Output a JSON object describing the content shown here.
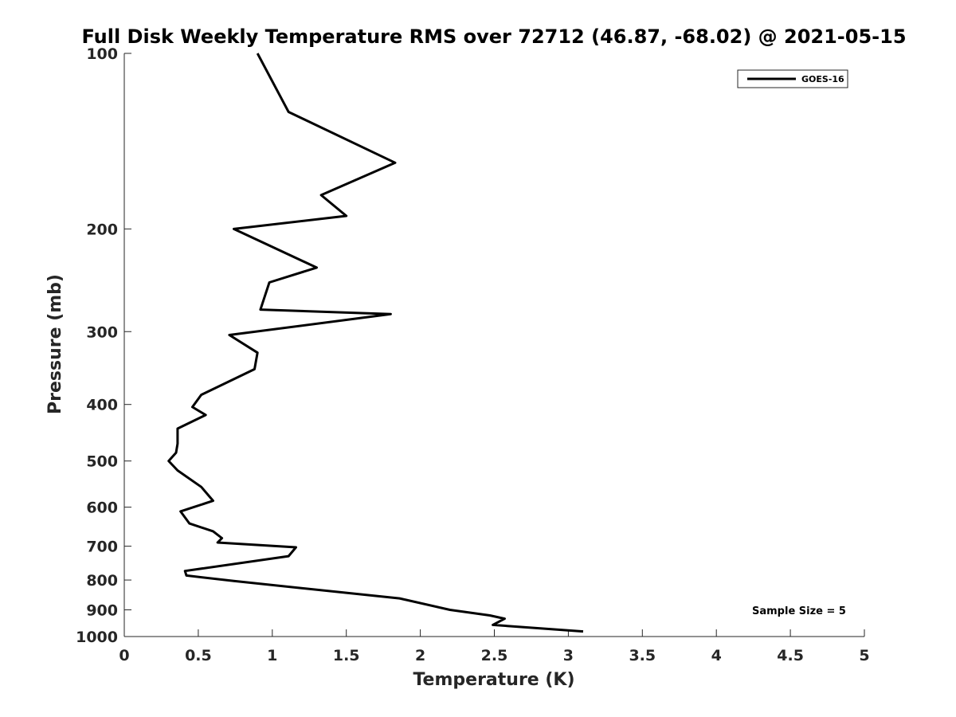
{
  "chart_data": {
    "type": "line",
    "title": "Full Disk Weekly Temperature RMS over 72712 (46.87, -68.02) @ 2021-05-15",
    "xlabel": "Temperature (K)",
    "ylabel": "Pressure (mb)",
    "xlim": [
      0,
      5
    ],
    "ylim": [
      100,
      1000
    ],
    "y_scale": "log",
    "y_reversed": true,
    "x_ticks": [
      "0",
      "0.5",
      "1",
      "1.5",
      "2",
      "2.5",
      "3",
      "3.5",
      "4",
      "4.5",
      "5"
    ],
    "y_ticks": [
      "100",
      "200",
      "300",
      "400",
      "500",
      "600",
      "700",
      "800",
      "900",
      "1000"
    ],
    "grid": false,
    "legend_position": "top-right",
    "annotation": "Sample Size = 5",
    "series": [
      {
        "name": "GOES-16",
        "color": "#000000",
        "x": [
          0.9,
          1.11,
          1.83,
          1.33,
          1.5,
          0.74,
          1.3,
          0.98,
          0.92,
          1.8,
          0.71,
          0.9,
          0.88,
          0.52,
          0.46,
          0.55,
          0.36,
          0.36,
          0.35,
          0.3,
          0.36,
          0.52,
          0.6,
          0.38,
          0.44,
          0.6,
          0.66,
          0.63,
          1.16,
          1.11,
          0.41,
          0.42,
          0.74,
          1.86,
          2.2,
          2.47,
          2.57,
          2.49,
          3.1
        ],
        "y": [
          100,
          126,
          154,
          175,
          190,
          200,
          233,
          247,
          275,
          280,
          304,
          326,
          348,
          385,
          404,
          417,
          440,
          467,
          484,
          500,
          519,
          554,
          585,
          610,
          640,
          660,
          678,
          690,
          703,
          728,
          772,
          786,
          803,
          860,
          900,
          920,
          932,
          955,
          980
        ]
      }
    ]
  }
}
